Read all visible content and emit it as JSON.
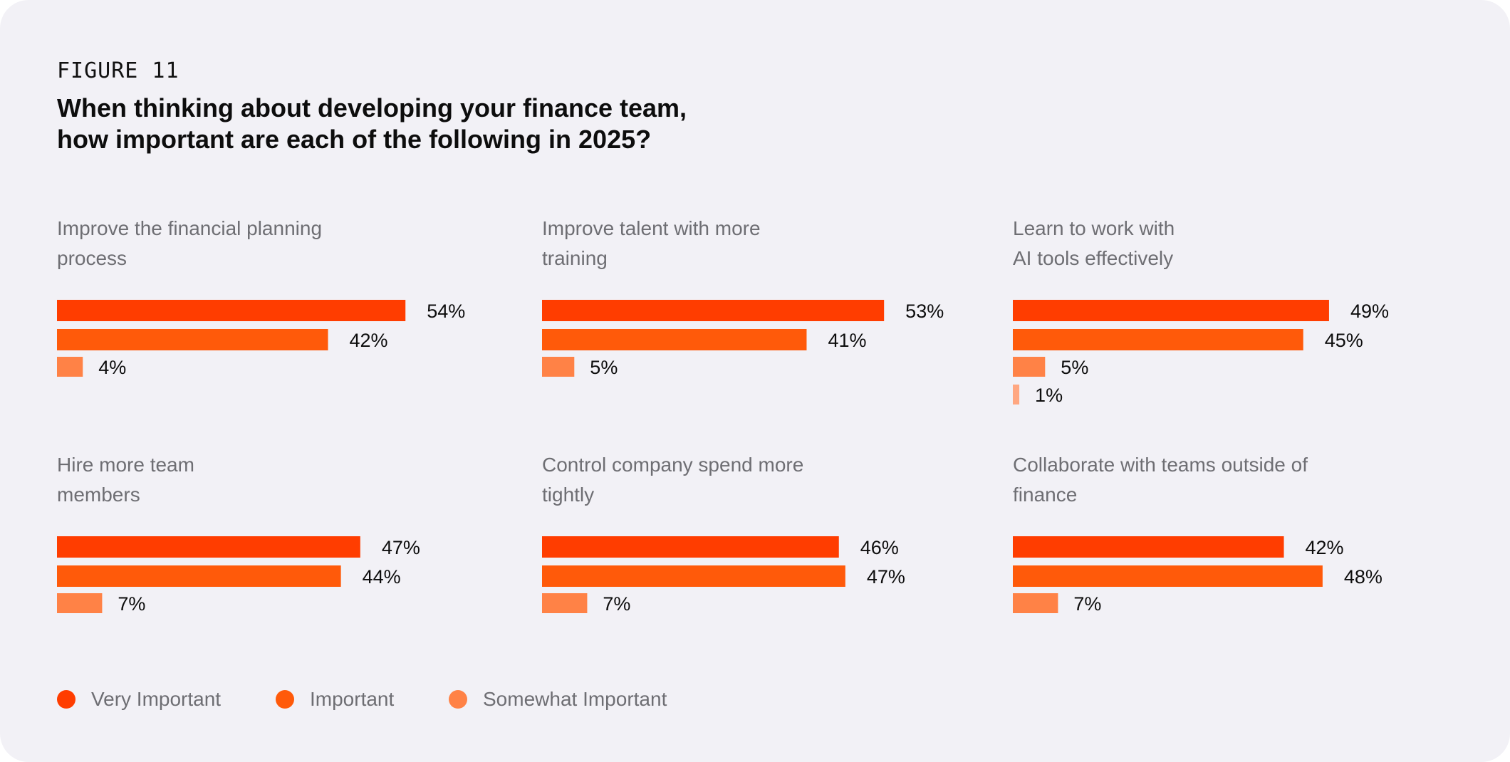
{
  "figure_label": "FIGURE 11",
  "title_lines": [
    "When thinking about developing your finance team,",
    "how important are each of the following in 2025?"
  ],
  "colors": {
    "very_important": "#ff3d00",
    "important": "#ff5a0a",
    "somewhat_important": "#ff8246",
    "fourth": "#ffa781"
  },
  "chart_data": {
    "type": "bar",
    "orientation": "horizontal",
    "unit": "%",
    "legend": [
      "Very Important",
      "Important",
      "Somewhat Important"
    ],
    "legend_position": "bottom-left",
    "panels": [
      {
        "label_lines": [
          "Improve the financial planning",
          "process"
        ],
        "values": [
          54,
          42,
          4
        ],
        "value_labels": [
          "54%",
          "42%",
          "4%"
        ]
      },
      {
        "label_lines": [
          "Improve talent with more",
          "training"
        ],
        "values": [
          53,
          41,
          5
        ],
        "value_labels": [
          "53%",
          "41%",
          "5%"
        ]
      },
      {
        "label_lines": [
          "Learn to work with",
          "AI tools effectively"
        ],
        "values": [
          49,
          45,
          5,
          1
        ],
        "value_labels": [
          "49%",
          "45%",
          "5%",
          "1%"
        ]
      },
      {
        "label_lines": [
          "Hire more team",
          "members"
        ],
        "values": [
          47,
          44,
          7
        ],
        "value_labels": [
          "47%",
          "44%",
          "7%"
        ]
      },
      {
        "label_lines": [
          "Control company spend more",
          "tightly"
        ],
        "values": [
          46,
          47,
          7
        ],
        "value_labels": [
          "46%",
          "47%",
          "7%"
        ]
      },
      {
        "label_lines": [
          "Collaborate with teams outside of",
          "finance"
        ],
        "values": [
          42,
          48,
          7
        ],
        "value_labels": [
          "42%",
          "48%",
          "7%"
        ]
      }
    ]
  }
}
